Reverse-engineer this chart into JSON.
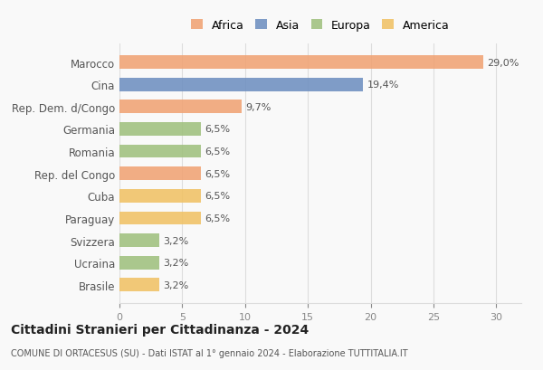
{
  "categories": [
    "Brasile",
    "Ucraina",
    "Svizzera",
    "Paraguay",
    "Cuba",
    "Rep. del Congo",
    "Romania",
    "Germania",
    "Rep. Dem. d/Congo",
    "Cina",
    "Marocco"
  ],
  "values": [
    3.2,
    3.2,
    3.2,
    6.5,
    6.5,
    6.5,
    6.5,
    6.5,
    9.7,
    19.4,
    29.0
  ],
  "colors": [
    "#f0c060",
    "#9dbf7a",
    "#9dbf7a",
    "#f0c060",
    "#f0c060",
    "#f0a070",
    "#9dbf7a",
    "#9dbf7a",
    "#f0a070",
    "#6a8cbf",
    "#f0a070"
  ],
  "continent_colors": {
    "Africa": "#f0a070",
    "Asia": "#6a8cbf",
    "Europa": "#9dbf7a",
    "America": "#f0c060"
  },
  "labels": [
    "3,2%",
    "3,2%",
    "3,2%",
    "6,5%",
    "6,5%",
    "6,5%",
    "6,5%",
    "6,5%",
    "9,7%",
    "19,4%",
    "29,0%"
  ],
  "title": "Cittadini Stranieri per Cittadinanza - 2024",
  "subtitle": "COMUNE DI ORTACESUS (SU) - Dati ISTAT al 1° gennaio 2024 - Elaborazione TUTTITALIA.IT",
  "xlim": [
    0,
    32
  ],
  "xticks": [
    0,
    5,
    10,
    15,
    20,
    25,
    30
  ],
  "background_color": "#f9f9f9",
  "grid_color": "#dddddd"
}
